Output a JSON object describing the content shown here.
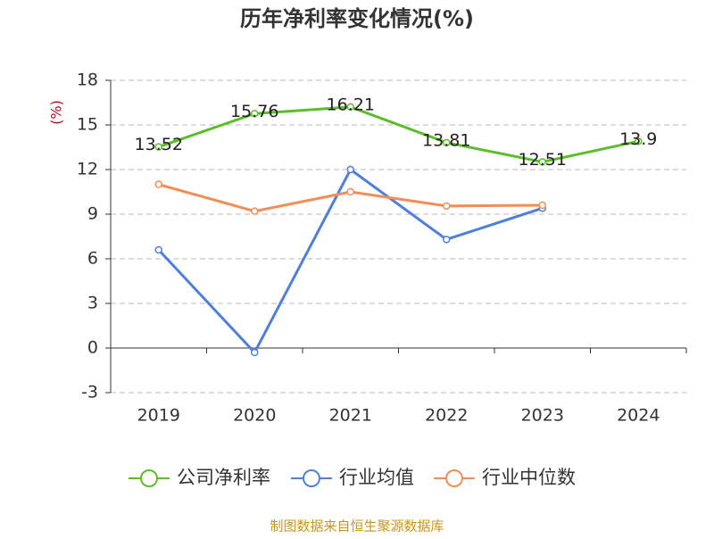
{
  "chart_data": {
    "type": "line",
    "title": "历年净利率变化情况(%)",
    "y_label": "(%)",
    "source": "制图数据来自恒生聚源数据库",
    "categories": [
      "2019",
      "2020",
      "2021",
      "2022",
      "2023",
      "2024"
    ],
    "series": [
      {
        "name": "公司净利率",
        "color": "#5cbd2a",
        "values": [
          13.52,
          15.76,
          16.21,
          13.81,
          12.51,
          13.9
        ],
        "show_labels": true
      },
      {
        "name": "行业均值",
        "color": "#4f7fdc",
        "values": [
          6.6,
          -0.3,
          12.0,
          7.3,
          9.4,
          null
        ],
        "show_labels": false
      },
      {
        "name": "行业中位数",
        "color": "#f28e55",
        "values": [
          11.0,
          9.2,
          10.5,
          9.55,
          9.6,
          null
        ],
        "show_labels": false
      }
    ],
    "ylim": [
      -3,
      18
    ],
    "yticks": [
      -3,
      0,
      3,
      6,
      9,
      12,
      15,
      18
    ],
    "grid": true
  }
}
